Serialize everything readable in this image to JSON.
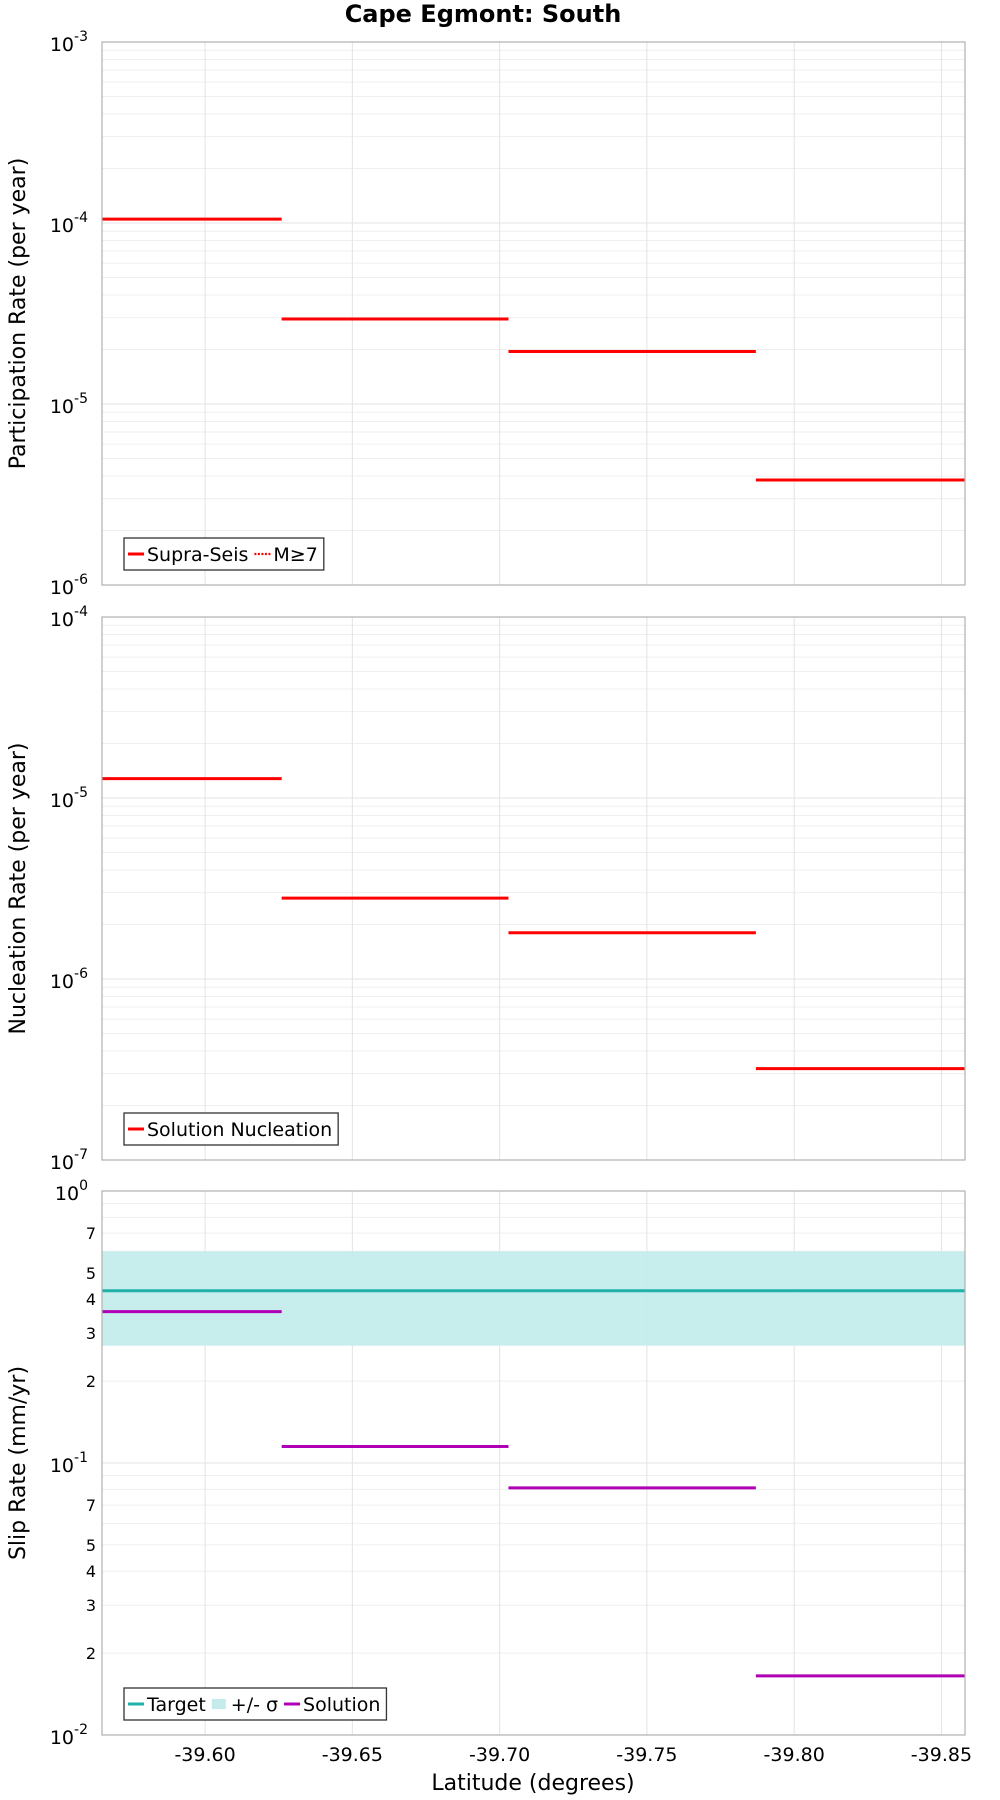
{
  "figure": {
    "title": "Cape Egmont: South",
    "xlabel": "Latitude (degrees)"
  },
  "chart_data": [
    {
      "type": "line",
      "ylabel": "Participation Rate (per year)",
      "yscale": "log",
      "ylim": [
        1e-06,
        0.001
      ],
      "y_tick_labels": [
        {
          "base": "10",
          "exp": "-6"
        },
        {
          "base": "10",
          "exp": "-5"
        },
        {
          "base": "10",
          "exp": "-4"
        },
        {
          "base": "10",
          "exp": "-3"
        }
      ],
      "x_ticks": [
        "-39.60",
        "-39.65",
        "-39.70",
        "-39.75",
        "-39.80",
        "-39.85"
      ],
      "x_tick_values": [
        -39.6,
        -39.65,
        -39.7,
        -39.75,
        -39.8,
        -39.85
      ],
      "xlim": [
        -39.565,
        -39.858
      ],
      "grid": true,
      "legend_position": "bottom-left",
      "series": [
        {
          "name": "Supra-Seis",
          "color": "#ff0000",
          "style": "solid",
          "segments": [
            {
              "x0": -39.565,
              "x1": -39.626,
              "y": 0.000105
            },
            {
              "x0": -39.626,
              "x1": -39.703,
              "y": 2.95e-05
            },
            {
              "x0": -39.703,
              "x1": -39.787,
              "y": 1.95e-05
            },
            {
              "x0": -39.787,
              "x1": -39.858,
              "y": 3.8e-06
            }
          ]
        },
        {
          "name": "M≥7",
          "color": "#ff0000",
          "style": "dotted",
          "segments": [
            {
              "x0": -39.565,
              "x1": -39.626,
              "y": 0.000105
            },
            {
              "x0": -39.626,
              "x1": -39.703,
              "y": 2.95e-05
            }
          ]
        }
      ]
    },
    {
      "type": "line",
      "ylabel": "Nucleation Rate (per year)",
      "yscale": "log",
      "ylim": [
        1e-07,
        0.0001
      ],
      "y_tick_labels": [
        {
          "base": "10",
          "exp": "-7"
        },
        {
          "base": "10",
          "exp": "-6"
        },
        {
          "base": "10",
          "exp": "-5"
        },
        {
          "base": "10",
          "exp": "-4"
        }
      ],
      "x_ticks": [
        "-39.60",
        "-39.65",
        "-39.70",
        "-39.75",
        "-39.80",
        "-39.85"
      ],
      "x_tick_values": [
        -39.6,
        -39.65,
        -39.7,
        -39.75,
        -39.8,
        -39.85
      ],
      "xlim": [
        -39.565,
        -39.858
      ],
      "grid": true,
      "legend_position": "bottom-left",
      "series": [
        {
          "name": "Solution Nucleation",
          "color": "#ff0000",
          "style": "solid",
          "segments": [
            {
              "x0": -39.565,
              "x1": -39.626,
              "y": 1.28e-05
            },
            {
              "x0": -39.626,
              "x1": -39.703,
              "y": 2.8e-06
            },
            {
              "x0": -39.703,
              "x1": -39.787,
              "y": 1.8e-06
            },
            {
              "x0": -39.787,
              "x1": -39.858,
              "y": 3.2e-07
            }
          ]
        }
      ]
    },
    {
      "type": "line",
      "ylabel": "Slip Rate (mm/yr)",
      "yscale": "log",
      "ylim": [
        0.01,
        1
      ],
      "y_tick_labels": [
        {
          "base": "10",
          "exp": "-2"
        },
        {
          "base": "10",
          "exp": "-1"
        },
        {
          "base": "10",
          "exp": "0"
        }
      ],
      "y_minor_tick_labels": [
        "2",
        "3",
        "4",
        "5",
        "7",
        "2",
        "3",
        "4",
        "5",
        "7"
      ],
      "y_minor_tick_values": [
        0.02,
        0.03,
        0.04,
        0.05,
        0.07,
        0.2,
        0.3,
        0.4,
        0.5,
        0.7
      ],
      "x_ticks": [
        "-39.60",
        "-39.65",
        "-39.70",
        "-39.75",
        "-39.80",
        "-39.85"
      ],
      "x_tick_values": [
        -39.6,
        -39.65,
        -39.7,
        -39.75,
        -39.8,
        -39.85
      ],
      "xlim": [
        -39.565,
        -39.858
      ],
      "grid": true,
      "legend_position": "bottom-left",
      "band": {
        "name": "+/- σ",
        "color": "#c4ecec",
        "y_low": 0.27,
        "y_high": 0.6
      },
      "series": [
        {
          "name": "Target",
          "color": "#20b2aa",
          "style": "solid",
          "segments": [
            {
              "x0": -39.565,
              "x1": -39.858,
              "y": 0.43
            }
          ]
        },
        {
          "name": "Solution",
          "color": "#b000b5",
          "style": "solid",
          "segments": [
            {
              "x0": -39.565,
              "x1": -39.626,
              "y": 0.36
            },
            {
              "x0": -39.626,
              "x1": -39.703,
              "y": 0.115
            },
            {
              "x0": -39.703,
              "x1": -39.787,
              "y": 0.081
            },
            {
              "x0": -39.787,
              "x1": -39.858,
              "y": 0.0165
            }
          ]
        }
      ]
    }
  ]
}
